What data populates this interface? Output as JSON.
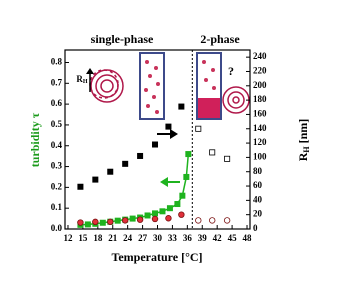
{
  "chart_data": {
    "type": "line",
    "annotations": [
      "single-phase",
      "2-phase",
      "?"
    ],
    "inset_label": [
      "R",
      "H"
    ],
    "xlabel": "Temperature [°C]",
    "ylabel": "turbidity τ",
    "ylabel_color": "#1a9a1a",
    "y2label": [
      "R",
      "H",
      " [nm]"
    ],
    "xlim": [
      11.4,
      48.6
    ],
    "xticks": [
      12,
      15,
      18,
      21,
      24,
      27,
      30,
      33,
      36,
      39,
      42,
      45,
      48
    ],
    "ylim": [
      0,
      0.86
    ],
    "yticks": [
      {
        "value": 0,
        "label": "0.0"
      },
      0.1,
      0.2,
      0.3,
      0.4,
      0.5,
      0.6,
      0.7,
      0.8
    ],
    "y2lim": [
      0,
      250
    ],
    "y2ticks": [
      0,
      20,
      40,
      60,
      80,
      100,
      120,
      140,
      160,
      180,
      200,
      220,
      240
    ],
    "phase_boundary": 37,
    "series": [
      {
        "color": "#1fb31f",
        "marker": "square",
        "filled": true,
        "line": true,
        "x": [
          14.5,
          16,
          17.5,
          19,
          20.5,
          22,
          23.5,
          25,
          26.5,
          28,
          29.5,
          31,
          32.5,
          34,
          35,
          35.8,
          36.2
        ],
        "values": [
          0.02,
          0.022,
          0.025,
          0.03,
          0.035,
          0.04,
          0.045,
          0.05,
          0.055,
          0.065,
          0.075,
          0.085,
          0.1,
          0.12,
          0.16,
          0.25,
          0.36
        ]
      },
      {
        "color": "#000000",
        "marker": "square",
        "filled": true,
        "line": false,
        "axis": "y2",
        "x": [
          14.5,
          17.5,
          20.5,
          23.5,
          26.5,
          29.5,
          32.2,
          34.8
        ],
        "values": [
          59,
          69,
          80,
          91,
          102,
          118,
          143,
          171
        ]
      },
      {
        "color": "#000000",
        "marker": "square",
        "filled": false,
        "line": false,
        "axis": "y2",
        "x": [
          38.2,
          41,
          44
        ],
        "values": [
          140,
          107,
          98
        ]
      },
      {
        "color": "#e0303a",
        "marker": "circle",
        "filled": true,
        "line": false,
        "axis": "y2",
        "x": [
          14.5,
          17.5,
          20.5,
          23.5,
          26.5,
          29.5,
          32.2,
          34.8
        ],
        "values": [
          9,
          10,
          10,
          12,
          13,
          14,
          15,
          20
        ]
      },
      {
        "color": "#e0303a",
        "marker": "circle",
        "filled": false,
        "line": false,
        "axis": "y2",
        "x": [
          38.2,
          41,
          44
        ],
        "values": [
          12,
          12,
          12
        ]
      }
    ]
  }
}
